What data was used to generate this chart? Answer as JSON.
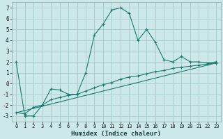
{
  "xlabel": "Humidex (Indice chaleur)",
  "xlim": [
    -0.5,
    23.5
  ],
  "ylim": [
    -3.5,
    7.5
  ],
  "xticks": [
    0,
    1,
    2,
    3,
    4,
    5,
    6,
    7,
    8,
    9,
    10,
    11,
    12,
    13,
    14,
    15,
    16,
    17,
    18,
    19,
    20,
    21,
    22,
    23
  ],
  "yticks": [
    -3,
    -2,
    -1,
    0,
    1,
    2,
    3,
    4,
    5,
    6,
    7
  ],
  "line_color": "#1a7a6e",
  "bg_color": "#cce8e8",
  "grid_color": "#aacece",
  "line1_x": [
    0,
    1,
    2,
    3,
    4,
    5,
    6,
    7,
    8,
    9,
    10,
    11,
    12,
    13,
    14,
    15,
    16,
    17,
    18,
    19,
    20,
    21,
    22,
    23
  ],
  "line1_y": [
    2.0,
    -3.0,
    -3.0,
    -2.0,
    -0.5,
    -0.6,
    -1.0,
    -1.0,
    1.0,
    4.5,
    5.5,
    6.8,
    7.0,
    6.5,
    4.0,
    5.0,
    3.8,
    2.2,
    2.0,
    2.5,
    2.0,
    2.0,
    1.9,
    2.0
  ],
  "line2_x": [
    0,
    1,
    2,
    3,
    4,
    5,
    6,
    7,
    8,
    9,
    10,
    11,
    12,
    13,
    14,
    15,
    16,
    17,
    18,
    19,
    20,
    21,
    22,
    23
  ],
  "line2_y": [
    -2.7,
    -2.8,
    -2.2,
    -2.0,
    -1.5,
    -1.3,
    -1.1,
    -1.0,
    -0.7,
    -0.4,
    -0.1,
    0.1,
    0.4,
    0.6,
    0.7,
    0.9,
    1.1,
    1.2,
    1.4,
    1.5,
    1.6,
    1.7,
    1.8,
    1.9
  ],
  "trend_x": [
    0,
    23
  ],
  "trend_y": [
    -2.7,
    1.9
  ]
}
